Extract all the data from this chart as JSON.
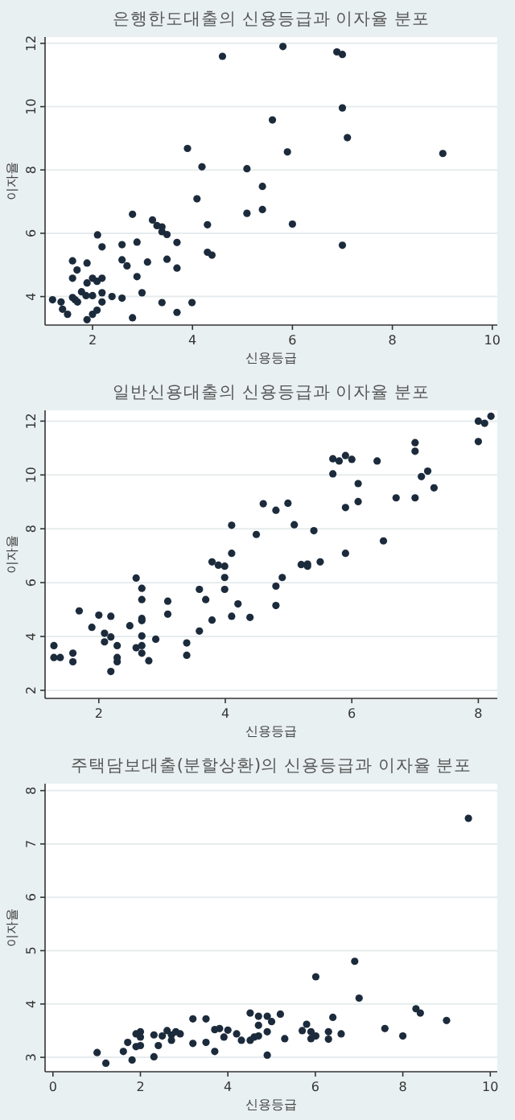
{
  "chart_data": [
    {
      "type": "scatter",
      "title": "은행한도대출의 신용등급과 이자율 분포",
      "xlabel": "신용등급",
      "ylabel": "이자율",
      "xlim": [
        1.05,
        10.1
      ],
      "ylim": [
        3.1,
        12.2
      ],
      "xticks": [
        2,
        4,
        6,
        8,
        10
      ],
      "yticks": [
        4,
        6,
        8,
        10,
        12
      ],
      "grid": "y",
      "marker": "circle",
      "series": [
        {
          "color": "#1c2b3c",
          "x": [
            1.2,
            1.37,
            1.4,
            1.5,
            1.6,
            1.6,
            1.6,
            1.65,
            1.69,
            1.7,
            1.78,
            1.87,
            1.89,
            1.89,
            1.89,
            2.0,
            2.0,
            2.0,
            2.09,
            2.1,
            2.09,
            2.19,
            2.19,
            2.19,
            2.19,
            2.39,
            2.59,
            2.59,
            2.59,
            2.69,
            2.8,
            2.8,
            2.89,
            2.89,
            2.99,
            3.1,
            3.2,
            3.29,
            3.39,
            3.39,
            3.49,
            3.39,
            3.49,
            3.69,
            3.69,
            3.69,
            3.9,
            3.99,
            4.09,
            4.19,
            4.3,
            4.3,
            4.39,
            4.6,
            5.09,
            5.09,
            5.4,
            5.4,
            5.6,
            5.81,
            5.9,
            6.0,
            6.89,
            7.0,
            7.0,
            7.0,
            7.1,
            9.01
          ],
          "values": [
            3.9,
            3.83,
            3.6,
            3.44,
            5.13,
            4.58,
            3.97,
            3.9,
            4.84,
            3.83,
            4.15,
            4.03,
            5.06,
            4.43,
            3.27,
            4.58,
            4.03,
            3.44,
            3.57,
            5.95,
            4.48,
            4.58,
            5.57,
            4.12,
            3.83,
            4.0,
            5.64,
            5.16,
            3.95,
            4.97,
            6.6,
            3.33,
            5.72,
            4.63,
            4.12,
            5.09,
            6.42,
            6.24,
            6.2,
            6.05,
            5.96,
            3.81,
            5.18,
            5.71,
            4.9,
            3.5,
            8.68,
            3.81,
            7.09,
            8.1,
            6.27,
            5.4,
            5.31,
            11.59,
            8.04,
            6.63,
            7.48,
            6.75,
            9.58,
            11.9,
            8.57,
            6.29,
            11.73,
            11.65,
            9.96,
            5.62,
            9.02,
            8.52
          ]
        }
      ]
    },
    {
      "type": "scatter",
      "title": "일반신용대출의 신용등급과 이자율 분포",
      "xlabel": "신용등급",
      "ylabel": "이자율",
      "xlim": [
        1.15,
        8.3
      ],
      "ylim": [
        1.7,
        12.4
      ],
      "xticks": [
        2,
        4,
        6,
        8
      ],
      "yticks": [
        2,
        4,
        6,
        8,
        10,
        12
      ],
      "grid": "y",
      "marker": "circle",
      "series": [
        {
          "color": "#1c2b3c",
          "x": [
            1.29,
            1.29,
            1.39,
            1.59,
            1.59,
            1.69,
            1.89,
            2.0,
            2.09,
            2.09,
            2.19,
            2.19,
            2.19,
            2.29,
            2.29,
            2.29,
            2.49,
            2.59,
            2.59,
            2.68,
            2.68,
            2.68,
            2.68,
            2.68,
            2.68,
            2.68,
            2.79,
            2.9,
            3.09,
            3.09,
            3.39,
            3.39,
            3.59,
            3.59,
            3.69,
            3.79,
            3.79,
            3.89,
            3.99,
            3.99,
            3.99,
            4.1,
            4.1,
            4.1,
            4.2,
            4.39,
            4.49,
            4.6,
            4.8,
            4.8,
            4.8,
            4.9,
            4.99,
            5.09,
            5.2,
            5.3,
            5.3,
            5.4,
            5.5,
            5.7,
            5.7,
            5.8,
            5.9,
            5.9,
            5.9,
            6.0,
            6.1,
            6.1,
            6.4,
            6.5,
            6.7,
            7.0,
            7.0,
            7.0,
            7.1,
            7.2,
            7.3,
            8.0,
            8.0,
            8.1,
            8.2
          ],
          "values": [
            3.66,
            3.22,
            3.22,
            3.38,
            3.06,
            4.95,
            4.34,
            4.79,
            4.12,
            3.8,
            3.98,
            4.75,
            2.7,
            3.66,
            3.22,
            3.06,
            4.4,
            6.17,
            3.58,
            5.79,
            5.37,
            4.67,
            4.59,
            4.02,
            3.66,
            3.38,
            3.1,
            3.9,
            5.31,
            4.83,
            3.76,
            3.3,
            5.75,
            4.2,
            5.37,
            6.77,
            4.61,
            6.65,
            6.61,
            6.19,
            5.75,
            8.13,
            7.09,
            4.75,
            5.21,
            4.71,
            7.79,
            8.93,
            8.69,
            5.87,
            5.15,
            6.19,
            8.95,
            8.15,
            6.67,
            6.69,
            6.61,
            7.93,
            6.77,
            10.6,
            10.04,
            10.52,
            10.72,
            8.79,
            7.09,
            10.58,
            9.68,
            9.01,
            10.52,
            7.55,
            9.15,
            11.2,
            10.88,
            9.15,
            9.94,
            10.14,
            9.52,
            12.0,
            11.24,
            11.92,
            12.18
          ]
        }
      ]
    },
    {
      "type": "scatter",
      "title": "주택담보대출(분할상환)의 신용등급과 이자율 분포",
      "xlabel": "신용등급",
      "ylabel": "이자율",
      "xlim": [
        -0.18,
        10.16
      ],
      "ylim": [
        2.73,
        8.13
      ],
      "xticks": [
        0,
        2,
        4,
        6,
        8,
        10
      ],
      "yticks": [
        3,
        4,
        5,
        6,
        7,
        8
      ],
      "grid": "y",
      "marker": "circle",
      "series": [
        {
          "color": "#1c2b3c",
          "x": [
            1.01,
            1.21,
            1.61,
            1.71,
            1.81,
            1.9,
            1.9,
            2.0,
            2.0,
            2.0,
            2.31,
            2.31,
            2.41,
            2.5,
            2.61,
            2.71,
            2.71,
            2.81,
            2.91,
            3.2,
            3.2,
            3.5,
            3.5,
            3.7,
            3.7,
            3.81,
            3.91,
            4.0,
            4.2,
            4.31,
            4.51,
            4.51,
            4.6,
            4.7,
            4.7,
            4.7,
            4.9,
            4.9,
            4.9,
            5.0,
            5.2,
            5.3,
            5.7,
            5.8,
            5.9,
            5.9,
            6.01,
            6.01,
            6.3,
            6.3,
            6.4,
            6.59,
            6.9,
            7.0,
            7.59,
            8.0,
            8.3,
            8.4,
            9.0,
            9.5
          ],
          "values": [
            3.09,
            2.89,
            3.11,
            3.28,
            2.95,
            3.44,
            3.2,
            3.48,
            3.22,
            3.38,
            3.42,
            3.01,
            3.22,
            3.4,
            3.5,
            3.32,
            3.42,
            3.48,
            3.44,
            3.72,
            3.26,
            3.72,
            3.28,
            3.52,
            3.11,
            3.54,
            3.38,
            3.51,
            3.44,
            3.32,
            3.83,
            3.32,
            3.38,
            3.77,
            3.6,
            3.4,
            3.77,
            3.48,
            3.04,
            3.67,
            3.81,
            3.35,
            3.5,
            3.62,
            3.48,
            3.35,
            3.4,
            4.51,
            3.48,
            3.34,
            3.75,
            3.44,
            4.8,
            4.11,
            3.54,
            3.4,
            3.91,
            3.83,
            3.69,
            7.48
          ]
        }
      ]
    }
  ]
}
